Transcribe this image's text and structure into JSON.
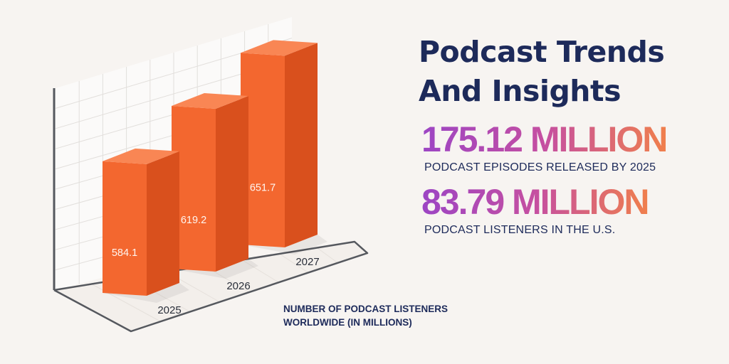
{
  "headline": {
    "line1": "Podcast Trends",
    "line2": "And Insights"
  },
  "stats": [
    {
      "value": "175.12 MILLION",
      "caption": "PODCAST EPISODES RELEASED BY 2025"
    },
    {
      "value": "83.79 MILLION",
      "caption": "PODCAST LISTENERS IN THE U.S."
    }
  ],
  "chart_caption": {
    "line1": "NUMBER OF PODCAST LISTENERS",
    "line2": "WORLDWIDE (IN MILLIONS)"
  },
  "colors": {
    "bar_front": "#f3672f",
    "bar_side": "#d9501d",
    "bar_top": "#f98654",
    "headline": "#1d2a5a",
    "gradient_start": "#9c45c4",
    "gradient_end": "#f07f4c"
  },
  "chart_data": {
    "type": "bar",
    "style": "3d",
    "categories": [
      "2025",
      "2026",
      "2027"
    ],
    "values": [
      584.1,
      619.2,
      651.7
    ],
    "data_labels": [
      "584.1",
      "619.2",
      "651.7"
    ],
    "title": "NUMBER OF PODCAST LISTENERS WORLDWIDE (IN MILLIONS)",
    "xlabel": "",
    "ylabel": "",
    "grid": true,
    "legend": "none"
  }
}
